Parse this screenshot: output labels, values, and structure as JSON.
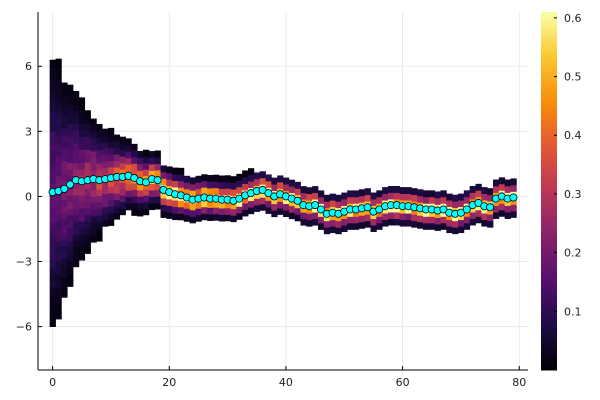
{
  "chart_data": {
    "type": "heatmap",
    "title": "",
    "xlabel": "",
    "ylabel": "",
    "xlim": [
      -2.5,
      81.5
    ],
    "ylim": [
      -8,
      8.5
    ],
    "grid": true,
    "legend": "none",
    "x_ticks": [
      0,
      20,
      40,
      60,
      80
    ],
    "x_tick_labels": [
      "0",
      "20",
      "40",
      "60",
      "80"
    ],
    "y_ticks": [
      -6,
      -3,
      0,
      3,
      6
    ],
    "y_tick_labels": [
      "−6",
      "−3",
      "0",
      "3",
      "6"
    ],
    "colorbar": {
      "colormap": "inferno",
      "range": [
        0.0,
        0.61
      ],
      "ticks": [
        0.1,
        0.2,
        0.3,
        0.4,
        0.5,
        0.6
      ],
      "tick_labels": [
        "0.1",
        "0.2",
        "0.3",
        "0.4",
        "0.5",
        "0.6"
      ]
    },
    "heatmap_bin_height": 0.3,
    "series": [
      {
        "type": "scatter_line",
        "color": "#00ffff",
        "x": [
          0,
          1,
          2,
          3,
          4,
          5,
          6,
          7,
          8,
          9,
          10,
          11,
          12,
          13,
          14,
          15,
          16,
          17,
          18,
          19,
          20,
          21,
          22,
          23,
          24,
          25,
          26,
          27,
          28,
          29,
          30,
          31,
          32,
          33,
          34,
          35,
          36,
          37,
          38,
          39,
          40,
          41,
          42,
          43,
          44,
          45,
          46,
          47,
          48,
          49,
          50,
          51,
          52,
          53,
          54,
          55,
          56,
          57,
          58,
          59,
          60,
          61,
          62,
          63,
          64,
          65,
          66,
          67,
          68,
          69,
          70,
          71,
          72,
          73,
          74,
          75,
          76,
          77,
          78,
          79
        ],
        "y": [
          0.2,
          0.25,
          0.35,
          0.55,
          0.75,
          0.7,
          0.75,
          0.8,
          0.75,
          0.8,
          0.85,
          0.9,
          0.9,
          0.95,
          0.85,
          0.7,
          0.65,
          0.8,
          0.75,
          0.3,
          0.2,
          0.1,
          0.05,
          -0.05,
          -0.15,
          -0.1,
          -0.05,
          -0.1,
          -0.1,
          -0.15,
          -0.15,
          -0.2,
          -0.1,
          0.05,
          0.15,
          0.25,
          0.3,
          0.15,
          0.0,
          0.1,
          0.0,
          -0.1,
          -0.2,
          -0.4,
          -0.45,
          -0.4,
          -0.6,
          -0.8,
          -0.75,
          -0.8,
          -0.7,
          -0.6,
          -0.6,
          -0.55,
          -0.5,
          -0.7,
          -0.6,
          -0.45,
          -0.4,
          -0.4,
          -0.45,
          -0.45,
          -0.5,
          -0.55,
          -0.6,
          -0.6,
          -0.65,
          -0.6,
          -0.75,
          -0.8,
          -0.75,
          -0.6,
          -0.4,
          -0.3,
          -0.45,
          -0.5,
          -0.1,
          0.0,
          -0.1,
          -0.05
        ]
      }
    ]
  }
}
